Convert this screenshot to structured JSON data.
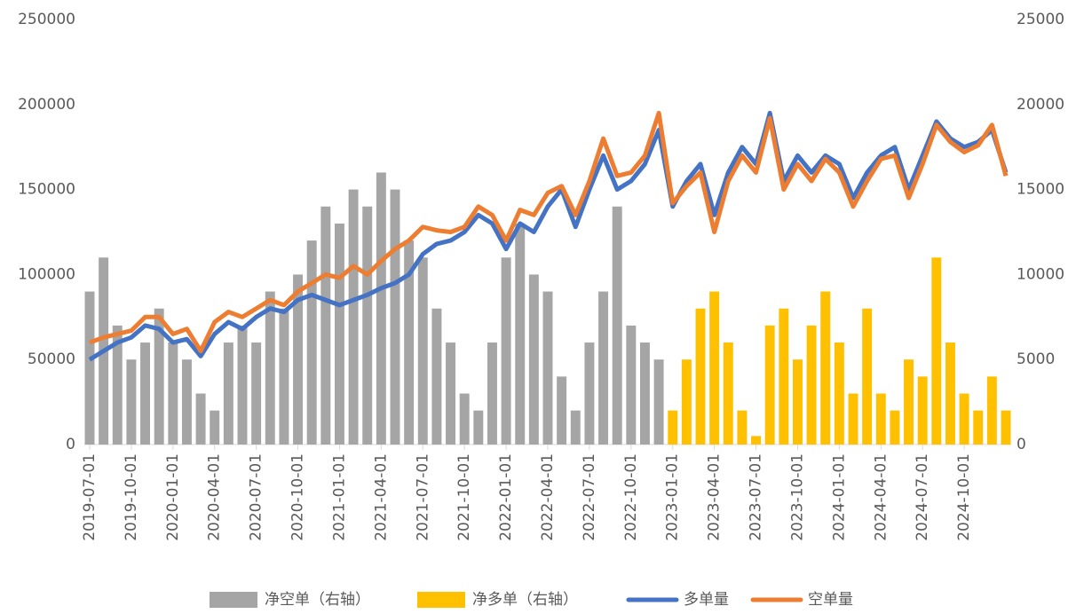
{
  "chart_data": {
    "type": "bar-line",
    "categories": [
      "2019-07-01",
      null,
      null,
      "2019-10-01",
      null,
      null,
      "2020-01-01",
      null,
      null,
      "2020-04-01",
      null,
      null,
      "2020-07-01",
      null,
      null,
      "2020-10-01",
      null,
      null,
      "2021-01-01",
      null,
      null,
      "2021-04-01",
      null,
      null,
      "2021-07-01",
      null,
      null,
      "2021-10-01",
      null,
      null,
      "2022-01-01",
      null,
      null,
      "2022-04-01",
      null,
      null,
      "2022-07-01",
      null,
      null,
      "2022-10-01",
      null,
      null,
      "2023-01-01",
      null,
      null,
      "2023-04-01",
      null,
      null,
      "2023-07-01",
      null,
      null,
      "2023-10-01",
      null,
      null,
      "2024-01-01",
      null,
      null,
      "2024-04-01",
      null,
      null,
      "2024-07-01",
      null,
      null,
      "2024-10-01",
      null,
      null,
      null
    ],
    "series": [
      {
        "name": "净空单（右轴）",
        "kind": "bar",
        "axis": "y2",
        "color": "#a5a5a5",
        "values": [
          9000,
          11000,
          7000,
          5000,
          6000,
          8000,
          6000,
          5000,
          3000,
          2000,
          6000,
          7000,
          6000,
          9000,
          8000,
          10000,
          12000,
          14000,
          13000,
          15000,
          14000,
          16000,
          15000,
          12000,
          11000,
          8000,
          6000,
          3000,
          2000,
          6000,
          11000,
          13000,
          10000,
          9000,
          4000,
          2000,
          6000,
          9000,
          14000,
          7000,
          6000,
          5000,
          0,
          0,
          0,
          0,
          0,
          0,
          0,
          0,
          0,
          0,
          0,
          0,
          0,
          0,
          0,
          0,
          0,
          0,
          0,
          0,
          0,
          0,
          0,
          0,
          0
        ]
      },
      {
        "name": "净多单（右轴）",
        "kind": "bar",
        "axis": "y2",
        "color": "#ffc000",
        "values": [
          0,
          0,
          0,
          0,
          0,
          0,
          0,
          0,
          0,
          0,
          0,
          0,
          0,
          0,
          0,
          0,
          0,
          0,
          0,
          0,
          0,
          0,
          0,
          0,
          0,
          0,
          0,
          0,
          0,
          0,
          0,
          0,
          0,
          0,
          0,
          0,
          0,
          0,
          0,
          0,
          0,
          0,
          2000,
          5000,
          8000,
          9000,
          6000,
          2000,
          500,
          7000,
          8000,
          5000,
          7000,
          9000,
          6000,
          3000,
          8000,
          3000,
          2000,
          5000,
          4000,
          11000,
          6000,
          3000,
          2000,
          4000,
          2000
        ]
      },
      {
        "name": "多单量",
        "kind": "line",
        "color": "#4472c4",
        "values": [
          50000,
          55000,
          60000,
          63000,
          70000,
          68000,
          60000,
          62000,
          52000,
          65000,
          72000,
          68000,
          75000,
          80000,
          78000,
          85000,
          88000,
          85000,
          82000,
          85000,
          88000,
          92000,
          95000,
          100000,
          112000,
          118000,
          120000,
          125000,
          135000,
          130000,
          115000,
          130000,
          125000,
          140000,
          150000,
          128000,
          150000,
          170000,
          150000,
          155000,
          165000,
          185000,
          140000,
          155000,
          165000,
          135000,
          160000,
          175000,
          165000,
          195000,
          155000,
          170000,
          160000,
          170000,
          165000,
          145000,
          160000,
          170000,
          175000,
          150000,
          170000,
          190000,
          180000,
          175000,
          178000,
          185000,
          160000
        ]
      },
      {
        "name": "空单量",
        "kind": "line",
        "color": "#ed7d31",
        "values": [
          60000,
          63000,
          65000,
          67000,
          75000,
          75000,
          65000,
          68000,
          55000,
          72000,
          78000,
          75000,
          80000,
          85000,
          82000,
          90000,
          95000,
          100000,
          98000,
          105000,
          100000,
          108000,
          115000,
          120000,
          128000,
          126000,
          125000,
          128000,
          140000,
          135000,
          120000,
          138000,
          135000,
          148000,
          152000,
          135000,
          155000,
          180000,
          158000,
          160000,
          170000,
          195000,
          142000,
          152000,
          160000,
          125000,
          155000,
          170000,
          160000,
          192000,
          150000,
          165000,
          155000,
          168000,
          160000,
          140000,
          155000,
          168000,
          170000,
          145000,
          165000,
          188000,
          178000,
          172000,
          176000,
          188000,
          158000
        ]
      }
    ],
    "ylim": [
      0,
      250000
    ],
    "yticks": [
      0,
      50000,
      100000,
      150000,
      200000,
      250000
    ],
    "y2lim": [
      0,
      25000
    ],
    "y2ticks": [
      0,
      5000,
      10000,
      15000,
      20000,
      25000
    ]
  }
}
